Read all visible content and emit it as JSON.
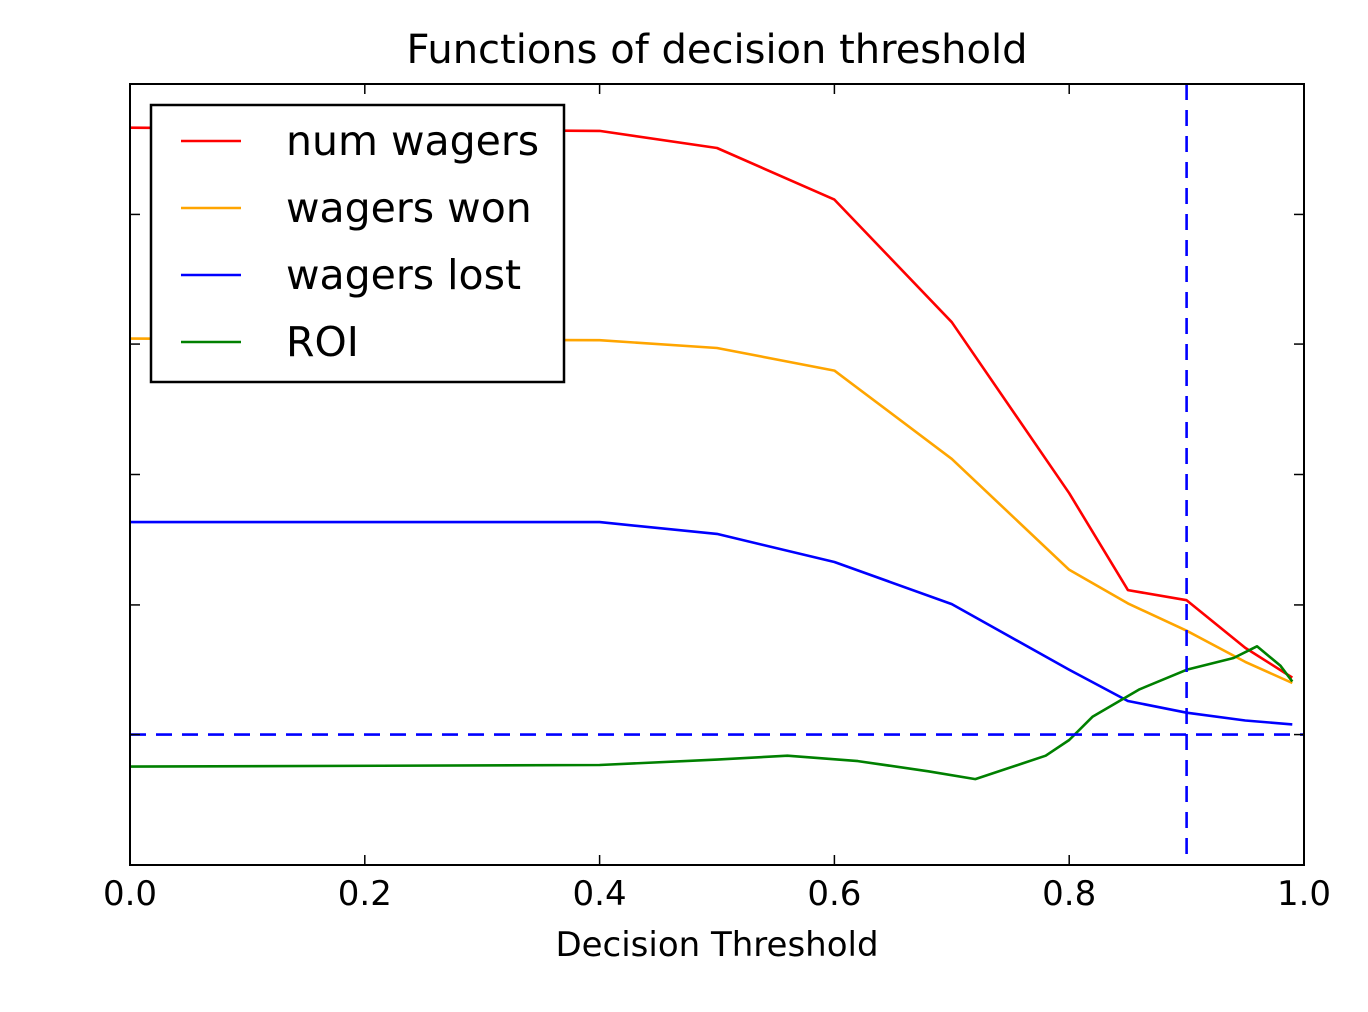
{
  "chart_data": {
    "type": "line",
    "title": "Functions of decision threshold",
    "xlabel": "Decision Threshold",
    "ylabel": "",
    "xlim": [
      0.0,
      1.0
    ],
    "ylim": [
      0,
      1
    ],
    "x_ticks": [
      0.0,
      0.2,
      0.4,
      0.6,
      0.8,
      1.0
    ],
    "x_tick_labels": [
      "0.0",
      "0.2",
      "0.4",
      "0.6",
      "0.8",
      "1.0"
    ],
    "y_ticks": [
      0.0,
      0.167,
      0.333,
      0.5,
      0.667,
      0.833,
      1.0
    ],
    "y_tick_labels_visible": false,
    "grid": false,
    "legend_placement": "top-left",
    "reference_lines": [
      {
        "orientation": "horizontal",
        "y": 0.167,
        "style": "dashed",
        "color": "#0000ff"
      },
      {
        "orientation": "vertical",
        "x": 0.9,
        "style": "dashed",
        "color": "#0000ff"
      }
    ],
    "series": [
      {
        "name": "num wagers",
        "color": "#ff0000",
        "points": [
          [
            0.0,
            0.944
          ],
          [
            0.4,
            0.94
          ],
          [
            0.5,
            0.918
          ],
          [
            0.6,
            0.852
          ],
          [
            0.7,
            0.695
          ],
          [
            0.8,
            0.476
          ],
          [
            0.85,
            0.352
          ],
          [
            0.9,
            0.339
          ],
          [
            0.95,
            0.278
          ],
          [
            0.99,
            0.24
          ]
        ]
      },
      {
        "name": "wagers won",
        "color": "#ffa500",
        "points": [
          [
            0.0,
            0.674
          ],
          [
            0.4,
            0.672
          ],
          [
            0.5,
            0.662
          ],
          [
            0.6,
            0.633
          ],
          [
            0.7,
            0.52
          ],
          [
            0.8,
            0.378
          ],
          [
            0.85,
            0.335
          ],
          [
            0.9,
            0.3
          ],
          [
            0.95,
            0.26
          ],
          [
            0.99,
            0.233
          ]
        ]
      },
      {
        "name": "wagers lost",
        "color": "#0000ff",
        "points": [
          [
            0.0,
            0.439
          ],
          [
            0.4,
            0.439
          ],
          [
            0.5,
            0.424
          ],
          [
            0.6,
            0.388
          ],
          [
            0.7,
            0.334
          ],
          [
            0.8,
            0.25
          ],
          [
            0.85,
            0.21
          ],
          [
            0.9,
            0.195
          ],
          [
            0.95,
            0.185
          ],
          [
            0.99,
            0.18
          ]
        ]
      },
      {
        "name": "ROI",
        "color": "#008000",
        "points": [
          [
            0.0,
            0.126
          ],
          [
            0.4,
            0.128
          ],
          [
            0.5,
            0.135
          ],
          [
            0.56,
            0.14
          ],
          [
            0.62,
            0.133
          ],
          [
            0.68,
            0.12
          ],
          [
            0.72,
            0.11
          ],
          [
            0.78,
            0.14
          ],
          [
            0.8,
            0.16
          ],
          [
            0.82,
            0.19
          ],
          [
            0.86,
            0.225
          ],
          [
            0.9,
            0.25
          ],
          [
            0.94,
            0.265
          ],
          [
            0.96,
            0.28
          ],
          [
            0.98,
            0.255
          ],
          [
            0.99,
            0.235
          ]
        ]
      }
    ]
  }
}
